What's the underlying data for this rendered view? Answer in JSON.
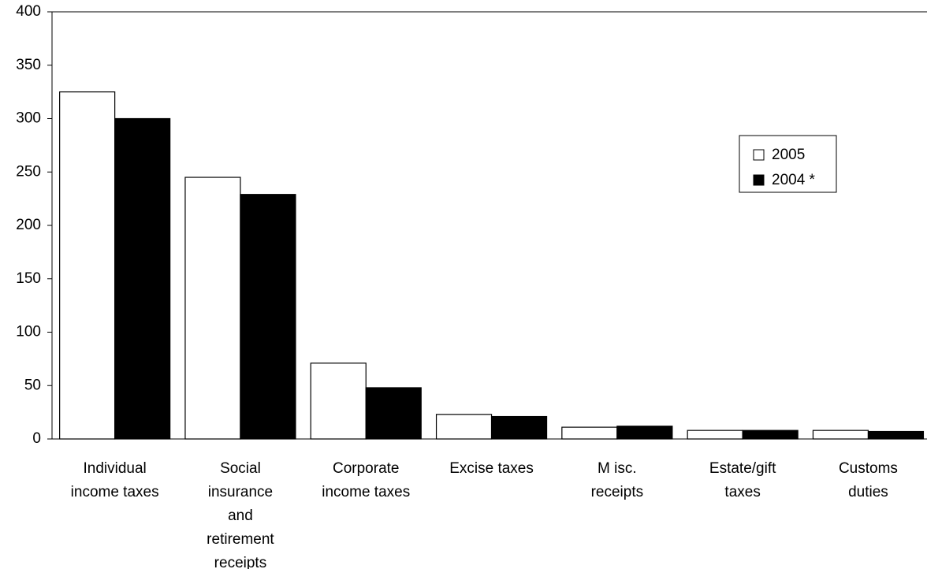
{
  "chart_data": {
    "type": "bar",
    "categories": [
      "Individual\nincome taxes",
      "Social\ninsurance\nand\nretirement\nreceipts",
      "Corporate\nincome taxes",
      "Excise taxes",
      "M isc.\nreceipts",
      "Estate/gift\ntaxes",
      "Customs\nduties"
    ],
    "series": [
      {
        "name": "2005",
        "color": "#ffffff",
        "values": [
          325,
          245,
          71,
          23,
          11,
          8,
          8
        ]
      },
      {
        "name": "2004 *",
        "color": "#000000",
        "values": [
          300,
          229,
          48,
          21,
          12,
          8,
          7
        ]
      }
    ],
    "ylim": [
      0,
      400
    ],
    "yticks": [
      0,
      50,
      100,
      150,
      200,
      250,
      300,
      350,
      400
    ],
    "grid": false,
    "legend": "upper-right"
  }
}
